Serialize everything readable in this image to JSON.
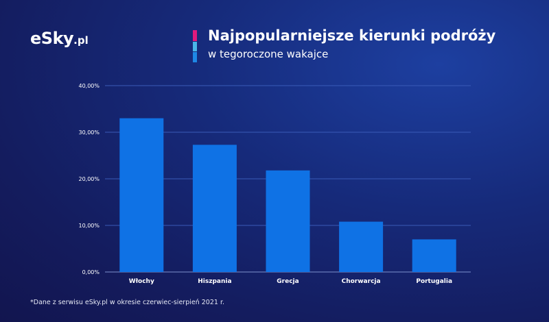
{
  "brand": {
    "logo_main": "eSky",
    "logo_suffix": ".pl"
  },
  "header": {
    "title": "Najpopularniejsze kierunki podróży",
    "subtitle": "w tegoroczone wakajce"
  },
  "colors": {
    "bar": "#0f72e5",
    "grid": "#3a5bb8",
    "accent_pink": "#e0197d",
    "accent_light_blue": "#49b6e8",
    "accent_blue": "#1e88e5"
  },
  "chart_data": {
    "type": "bar",
    "title": "Najpopularniejsze kierunki podróży",
    "subtitle": "w tegoroczone wakajce",
    "categories": [
      "Włochy",
      "Hiszpania",
      "Grecja",
      "Chorwarcja",
      "Portugalia"
    ],
    "values": [
      33.0,
      27.3,
      21.8,
      10.8,
      7.0
    ],
    "unit": "%",
    "ylim": [
      0,
      40
    ],
    "yticks": [
      0,
      10,
      20,
      30,
      40
    ],
    "ytick_labels": [
      "0,00%",
      "10,00%",
      "20,00%",
      "30,00%",
      "40,00%"
    ],
    "grid": true,
    "legend": "none"
  },
  "footnote": "*Dane z serwisu eSky.pl w okresie czerwiec-sierpień 2021 r."
}
